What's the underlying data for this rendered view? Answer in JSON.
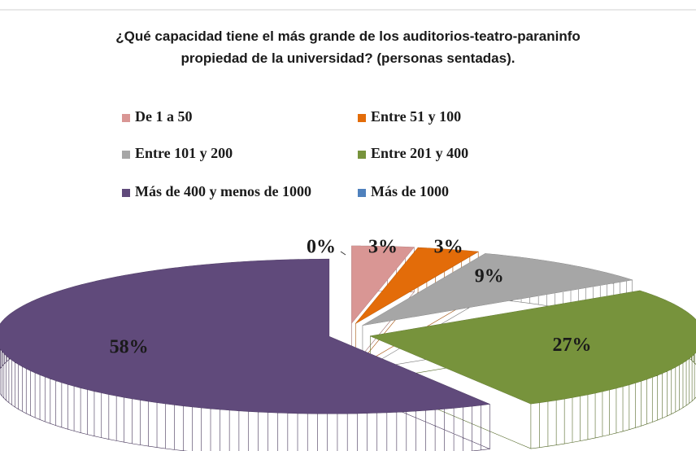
{
  "chart_data": {
    "type": "pie3d",
    "title": [
      "¿Qué capacidad tiene el más grande de los auditorios-teatro-paraninfo",
      "propiedad de la universidad? (personas sentadas)."
    ],
    "categories": [
      "De 1 a 50",
      "Entre 51 y 100",
      "Entre 101 y 200",
      "Entre 201 y 400",
      "Más de 400 y menos de 1000",
      "Más de 1000"
    ],
    "values": [
      3,
      3,
      9,
      27,
      58,
      0
    ],
    "value_labels": [
      "3%",
      "3%",
      "9%",
      "27%",
      "58%",
      "0%"
    ],
    "colors": [
      "#d99694",
      "#e36c09",
      "#a6a6a6",
      "#77933c",
      "#604a7b",
      "#4f81bd"
    ],
    "legend": "top"
  }
}
